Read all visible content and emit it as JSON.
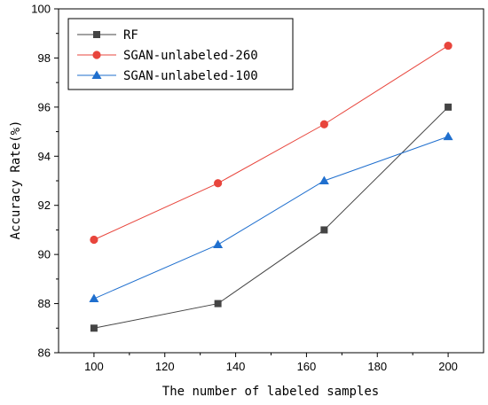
{
  "chart_data": {
    "type": "line",
    "xlabel": "The number of labeled samples",
    "ylabel": "Accuracy Rate(%)",
    "xlim": [
      90,
      210
    ],
    "ylim": [
      86,
      100
    ],
    "x_ticks": [
      100,
      120,
      140,
      160,
      180,
      200
    ],
    "y_ticks": [
      86,
      88,
      90,
      92,
      94,
      96,
      98,
      100
    ],
    "x": [
      100,
      135,
      165,
      200
    ],
    "grid": false,
    "legend_position": "top-left",
    "series": [
      {
        "name": "RF",
        "values": [
          87.0,
          88.0,
          91.0,
          96.0
        ],
        "color": "#444444",
        "marker": "square"
      },
      {
        "name": "SGAN-unlabeled-260",
        "values": [
          90.6,
          92.9,
          95.3,
          98.5
        ],
        "color": "#e8453c",
        "marker": "circle"
      },
      {
        "name": "SGAN-unlabeled-100",
        "values": [
          88.2,
          90.4,
          93.0,
          94.8
        ],
        "color": "#1f6fce",
        "marker": "triangle"
      }
    ]
  }
}
